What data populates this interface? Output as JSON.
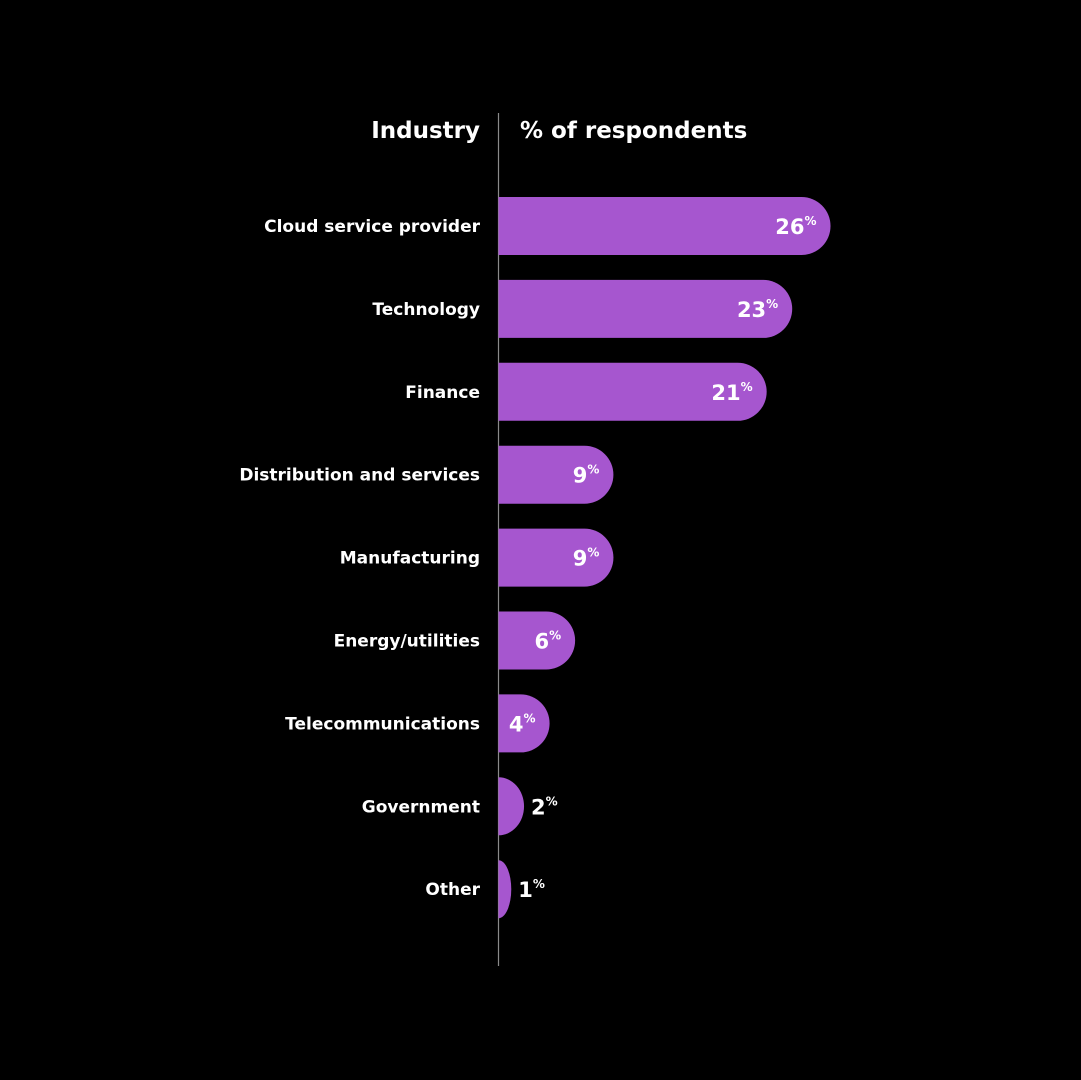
{
  "chart_data": {
    "type": "bar",
    "orientation": "horizontal",
    "category_header": "Industry",
    "value_header": "% of respondents",
    "unit_symbol": "%",
    "categories": [
      "Cloud service provider",
      "Technology",
      "Finance",
      "Distribution and services",
      "Manufacturing",
      "Energy/utilities",
      "Telecommunications",
      "Government",
      "Other"
    ],
    "values": [
      26,
      23,
      21,
      9,
      9,
      6,
      4,
      2,
      1
    ],
    "bar_color": "#a656cf",
    "background_color": "#000000",
    "text_color": "#ffffff",
    "axis_line_color": "#8a8a8a",
    "grid": false,
    "legend": "none"
  }
}
